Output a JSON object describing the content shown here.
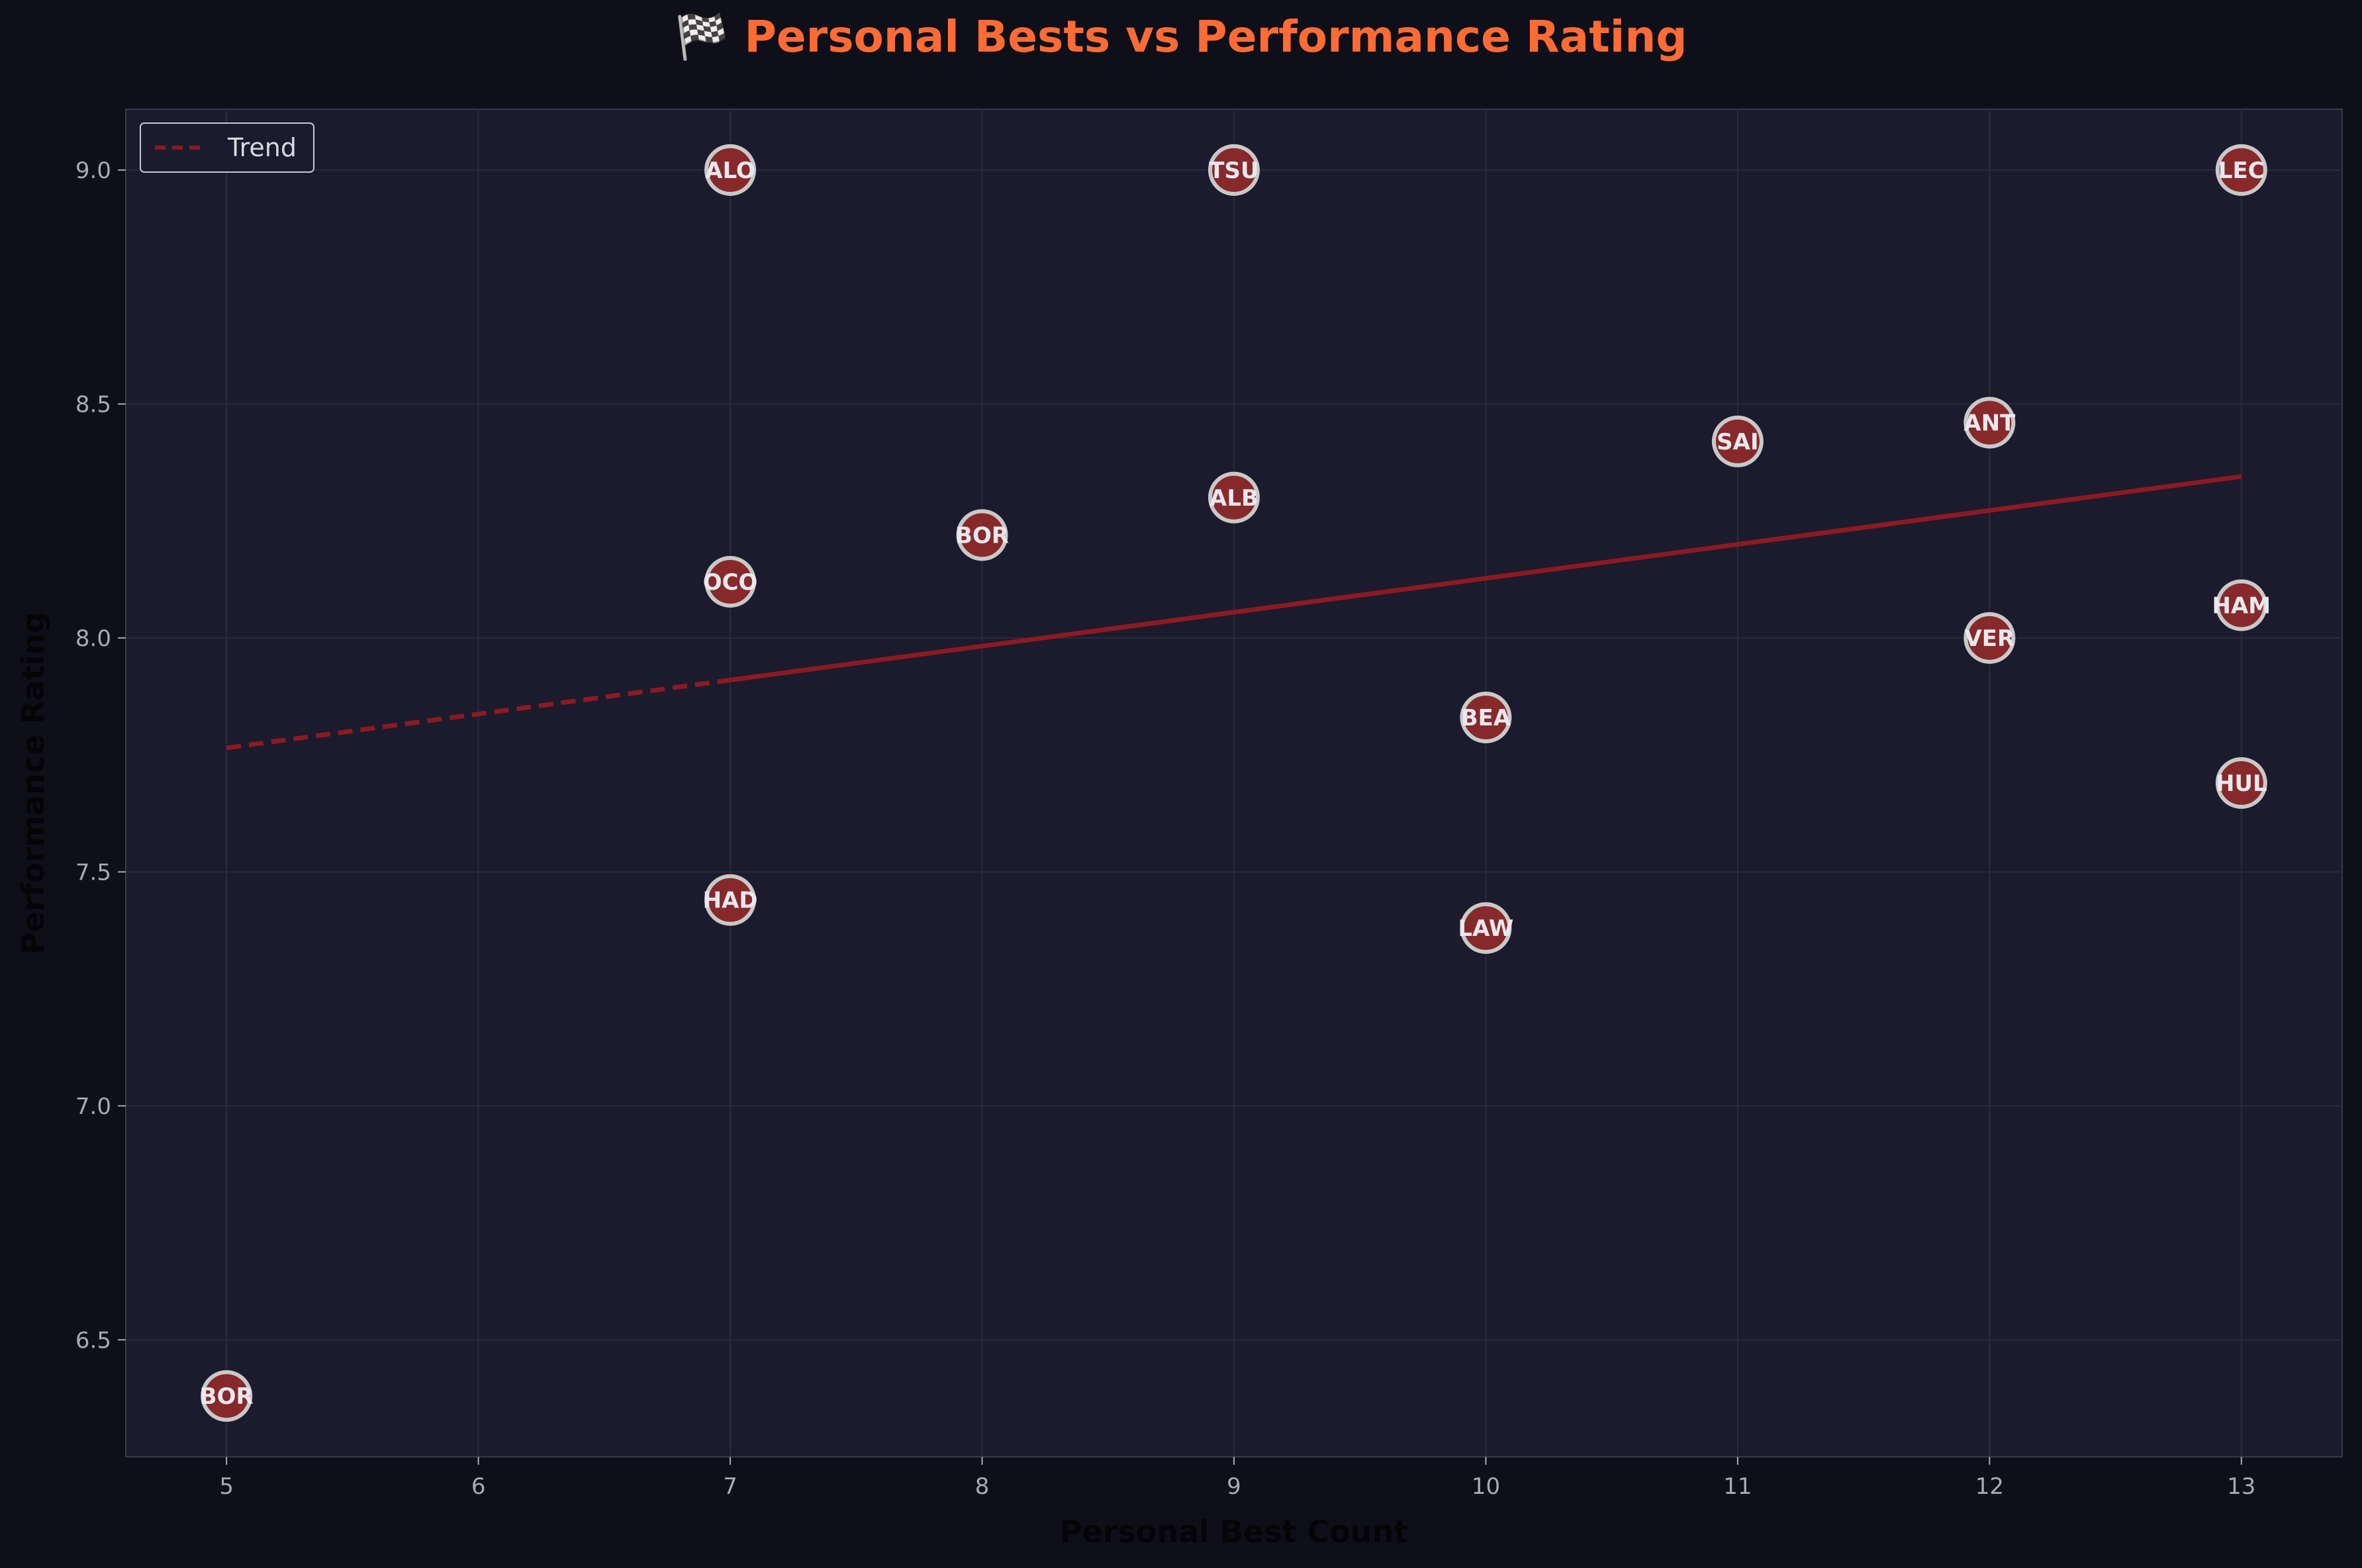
{
  "chart_data": {
    "type": "scatter",
    "title": "🏁 Personal Bests vs Performance Rating",
    "xlabel": "Personal Best Count",
    "ylabel": "Performance Rating",
    "xlim": [
      4.6,
      13.4
    ],
    "ylim": [
      6.25,
      9.13
    ],
    "xticks": [
      "5",
      "6",
      "7",
      "8",
      "9",
      "10",
      "11",
      "12",
      "13"
    ],
    "yticks": [
      "6.5",
      "7.0",
      "7.5",
      "8.0",
      "8.5",
      "9.0"
    ],
    "grid": true,
    "legend": {
      "position": "top-left",
      "entries": [
        "Trend"
      ]
    },
    "points": [
      {
        "label": "BOR",
        "x": 5,
        "y": 6.38
      },
      {
        "label": "ALO",
        "x": 7,
        "y": 9.0
      },
      {
        "label": "OCO",
        "x": 7,
        "y": 8.12
      },
      {
        "label": "HAD",
        "x": 7,
        "y": 7.44
      },
      {
        "label": "BOR",
        "x": 8,
        "y": 8.22
      },
      {
        "label": "TSU",
        "x": 9,
        "y": 9.0
      },
      {
        "label": "ALB",
        "x": 9,
        "y": 8.3
      },
      {
        "label": "LAW",
        "x": 10,
        "y": 7.38
      },
      {
        "label": "BEA",
        "x": 10,
        "y": 7.83
      },
      {
        "label": "SAI",
        "x": 11,
        "y": 8.42
      },
      {
        "label": "ANT",
        "x": 12,
        "y": 8.46
      },
      {
        "label": "VER",
        "x": 12,
        "y": 8.0
      },
      {
        "label": "LEC",
        "x": 13,
        "y": 9.0
      },
      {
        "label": "HAM",
        "x": 13,
        "y": 8.07
      },
      {
        "label": "HUL",
        "x": 13,
        "y": 7.69
      }
    ],
    "trend": {
      "name": "Trend",
      "x": [
        5,
        13
      ],
      "y": [
        7.765,
        8.345
      ],
      "solid_from_x": 7
    },
    "colors": {
      "background": "#0f0f1a",
      "plot_background": "#1b1b2d",
      "title": "#ff6b35",
      "marker_fill": "#9a2b2b",
      "marker_edge": "#c9c9c9",
      "trend_line": "#8b1a22",
      "grid": "#2a2a3e"
    }
  }
}
